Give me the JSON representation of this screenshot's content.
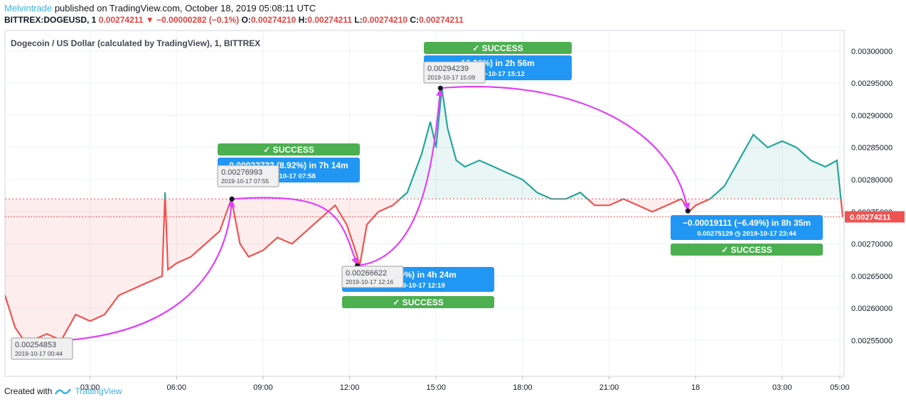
{
  "header": {
    "author": "Melvintrade",
    "published_text": "published on TradingView.com, October 18, 2019 05:08:11 UTC",
    "symbol": "BITTREX:DOGEUSD, 1",
    "last": "0.00274211",
    "change": "−0.00000282 (−0.1%)",
    "o_label": "O:",
    "o_value": "0.00274210",
    "h_label": "H:",
    "h_value": "0.00274211",
    "l_label": "L:",
    "l_value": "0.00274210",
    "c_label": "C:",
    "c_value": "0.00274211"
  },
  "footer": {
    "created_with": "Created with",
    "brand": "TradingView"
  },
  "colors": {
    "up": "#26a69a",
    "down": "#ef5350",
    "arrow": "#e040fb",
    "success": "#4caf50",
    "label_blue": "#2196f3"
  },
  "chart_data": {
    "type": "line",
    "title": "Dogecoin / US Dollar (calculated by TradingView), 1, BITTREX",
    "xlabel": "",
    "ylabel": "",
    "x_ticks": [
      "03:00",
      "06:00",
      "09:00",
      "12:00",
      "15:00",
      "18:00",
      "21:00",
      "18",
      "03:00",
      "05:00"
    ],
    "x_tick_hours": [
      3,
      6,
      9,
      12,
      15,
      18,
      21,
      24,
      27,
      29
    ],
    "x_range_hours": [
      0.05,
      29.15
    ],
    "y_ticks": [
      "0.00300000",
      "0.00295000",
      "0.00290000",
      "0.00285000",
      "0.00280000",
      "0.00275000",
      "0.00270000",
      "0.00265000",
      "0.00260000",
      "0.00255000"
    ],
    "ylim": [
      0.002494,
      0.003032
    ],
    "baseline": 0.00277,
    "last_price": 0.00274211,
    "last_price_label": "0.00274211",
    "series": [
      {
        "x": [
          0.05,
          0.4,
          0.7,
          1.0,
          1.5,
          2.0,
          2.5,
          3.0,
          3.5,
          4.0,
          4.5,
          5.0,
          5.5,
          5.6,
          5.7,
          6.0,
          6.5,
          7.0,
          7.5,
          7.9,
          8.2,
          8.5,
          9.0,
          9.5,
          10.0,
          10.5,
          11.0,
          11.5,
          11.9,
          12.2,
          12.35,
          12.6,
          13.0,
          13.5,
          14.0,
          14.5,
          14.8,
          15.0,
          15.2,
          15.4,
          15.7,
          16.0,
          16.5,
          17.0,
          17.5,
          18.0,
          18.5,
          19.0,
          19.5,
          20.0,
          20.5,
          21.0,
          21.5,
          22.0,
          22.5,
          23.0,
          23.5,
          23.8,
          24.0,
          24.5,
          25.0,
          25.5,
          26.0,
          26.5,
          27.0,
          27.5,
          28.0,
          28.5,
          28.9,
          29.1
        ],
        "y": [
          0.00262,
          0.00257,
          0.00255,
          0.00255,
          0.00256,
          0.00255,
          0.00259,
          0.00258,
          0.00259,
          0.00262,
          0.00263,
          0.00264,
          0.00265,
          0.00278,
          0.00266,
          0.00267,
          0.00268,
          0.0027,
          0.00272,
          0.00277,
          0.0027,
          0.00268,
          0.00269,
          0.00271,
          0.0027,
          0.00272,
          0.00274,
          0.00276,
          0.00273,
          0.00269,
          0.00266622,
          0.00273,
          0.00275,
          0.00276,
          0.00278,
          0.00284,
          0.00289,
          0.00285,
          0.00294239,
          0.00288,
          0.00283,
          0.00282,
          0.00283,
          0.00282,
          0.00281,
          0.0028,
          0.00278,
          0.00277,
          0.00277,
          0.00278,
          0.00276,
          0.00276,
          0.00277,
          0.00276,
          0.00275,
          0.00276,
          0.00277,
          0.00275129,
          0.00276,
          0.00277,
          0.00279,
          0.00283,
          0.00287,
          0.00285,
          0.00286,
          0.00285,
          0.00283,
          0.00282,
          0.00283,
          0.00274211
        ]
      }
    ],
    "annotations": [
      {
        "price": "0.00254853",
        "date": "2019-10-17 00:44",
        "x": 0.73,
        "y": 0.00254853
      },
      {
        "price": "0.00276993",
        "date": "2019-10-17 07:55",
        "x": 7.92,
        "y": 0.00276993
      },
      {
        "price": "0.00266622",
        "date": "2019-10-17 12:16",
        "x": 12.27,
        "y": 0.00266622
      },
      {
        "price": "0.00294239",
        "date": "2019-10-17 15:09",
        "x": 15.15,
        "y": 0.00294239
      },
      {
        "price": "0.00275129",
        "date": "2019-10-17 23:44",
        "x": 23.73,
        "y": 0.00275129
      }
    ],
    "measures": [
      {
        "text": "0.00022733 (8.92%) in 7h 14m",
        "sub": "2019-10-17  07:58",
        "status": "SUCCESS",
        "status_pos": "above"
      },
      {
        "text": "(−3.79%) in 4h 24m",
        "sub": "2019-10-17  12:19",
        "status": "SUCCESS",
        "status_pos": "below"
      },
      {
        "text": "10.36%) in 2h 56m",
        "sub": "2019-10-17  15:12",
        "status": "SUCCESS",
        "status_pos": "above"
      },
      {
        "text": "−0.00019111 (−6.49%) in 8h 35m",
        "sub": "0.00275129 ◷ 2019-10-17  23:44",
        "status": "SUCCESS",
        "status_pos": "below"
      }
    ]
  }
}
